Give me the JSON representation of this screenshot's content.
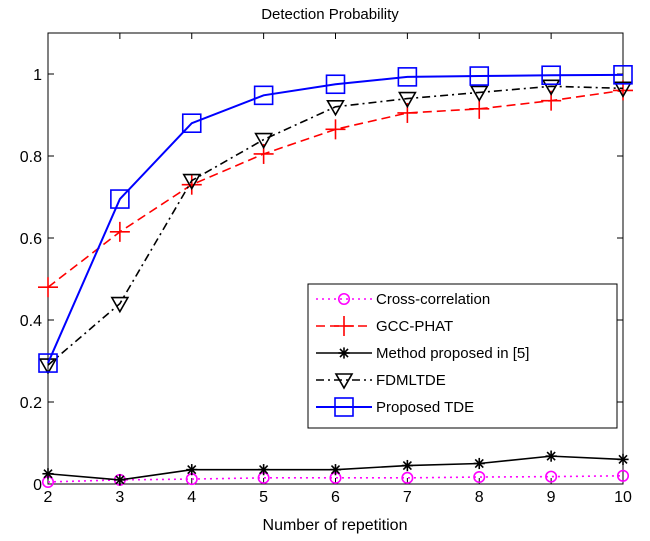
{
  "chart_data": {
    "type": "line",
    "title": "Detection Probability",
    "xlabel": "Number of repetition",
    "ylabel": "",
    "xlim": [
      2,
      10
    ],
    "ylim": [
      0,
      1.1
    ],
    "x": [
      2,
      3,
      4,
      5,
      6,
      7,
      8,
      9,
      10
    ],
    "xticks": [
      "2",
      "3",
      "4",
      "5",
      "6",
      "7",
      "8",
      "9",
      "10"
    ],
    "yticks": [
      "0",
      "0.2",
      "0.4",
      "0.6",
      "0.8",
      "1"
    ],
    "grid": false,
    "legend_position": "bottom-right",
    "series": [
      {
        "name": "Cross-correlation",
        "color": "#ff00ff",
        "line_style": "dotted",
        "marker": "circle",
        "values": [
          0.005,
          0.01,
          0.012,
          0.015,
          0.015,
          0.015,
          0.017,
          0.018,
          0.02
        ]
      },
      {
        "name": "GCC-PHAT",
        "color": "#ff0000",
        "line_style": "dashed",
        "marker": "plus",
        "values": [
          0.48,
          0.615,
          0.73,
          0.805,
          0.865,
          0.905,
          0.915,
          0.935,
          0.96
        ]
      },
      {
        "name": "Method proposed in [5]",
        "color": "#000000",
        "line_style": "solid",
        "marker": "asterisk",
        "values": [
          0.025,
          0.01,
          0.035,
          0.035,
          0.035,
          0.045,
          0.05,
          0.068,
          0.06
        ]
      },
      {
        "name": "FDMLTDE",
        "color": "#000000",
        "line_style": "dashdot",
        "marker": "triangle-down",
        "values": [
          0.29,
          0.44,
          0.74,
          0.84,
          0.92,
          0.94,
          0.955,
          0.97,
          0.965
        ]
      },
      {
        "name": "Proposed TDE",
        "color": "#0000ff",
        "line_style": "solid",
        "marker": "square",
        "values": [
          0.295,
          0.695,
          0.88,
          0.948,
          0.975,
          0.993,
          0.995,
          0.997,
          0.998
        ]
      }
    ]
  }
}
